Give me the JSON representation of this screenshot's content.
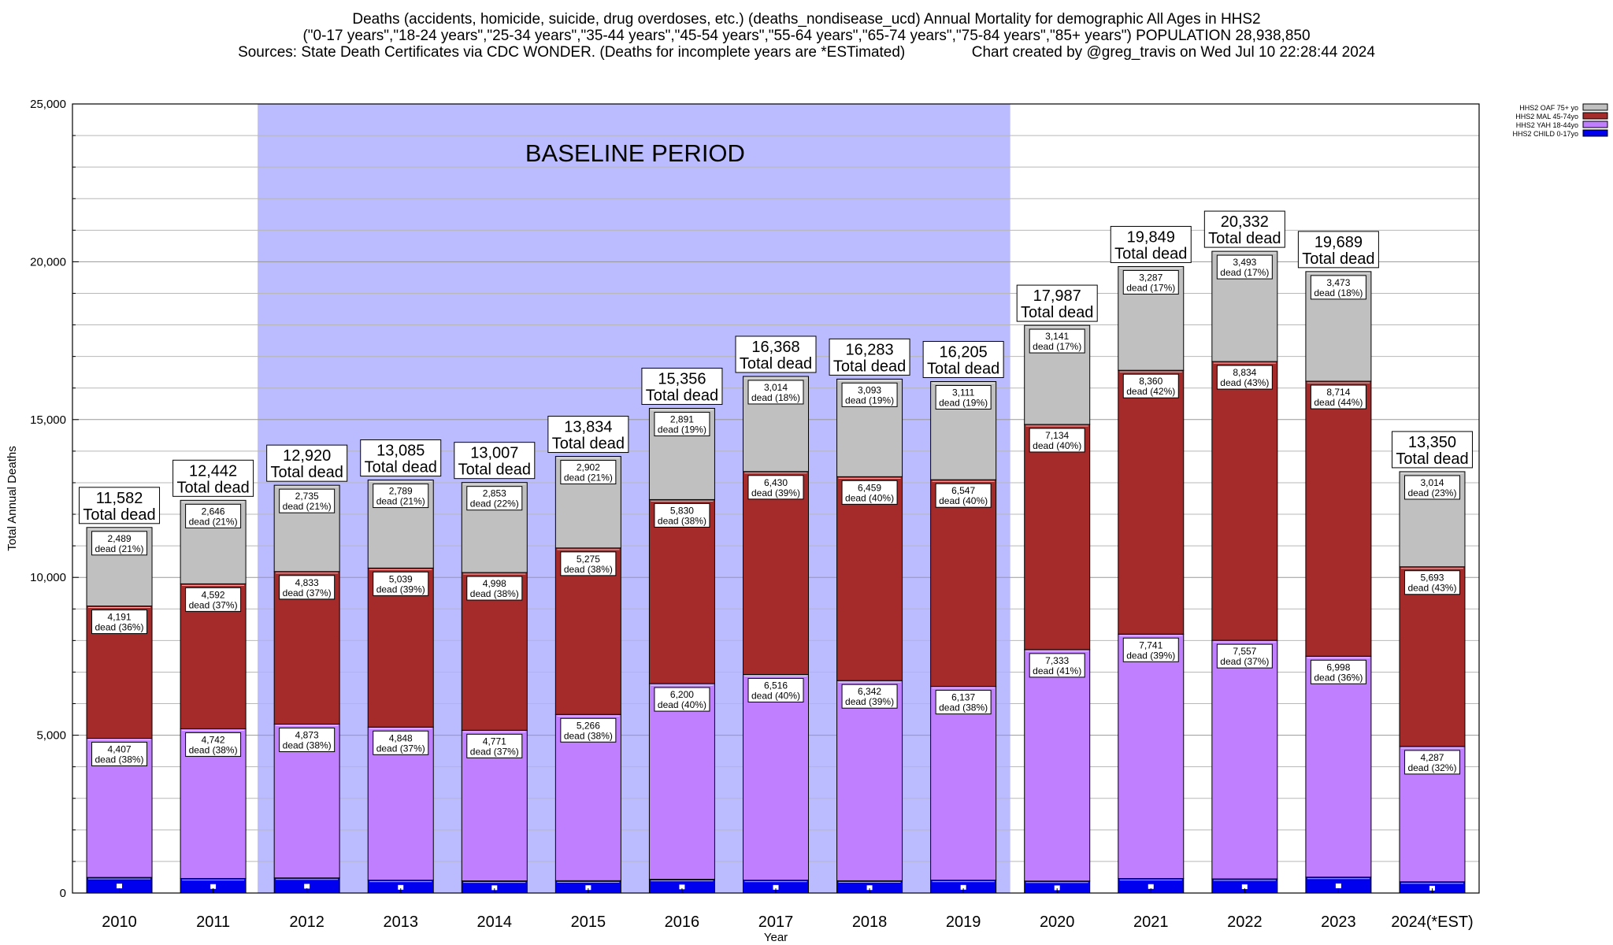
{
  "title": {
    "line1": "Deaths (accidents, homicide, suicide, drug overdoses, etc.) (deaths_nondisease_ucd) Annual Mortality for demographic All Ages in HHS2",
    "line2": "(\"0-17 years\",\"18-24 years\",\"25-34 years\",\"35-44 years\",\"45-54 years\",\"55-64 years\",\"65-74 years\",\"75-84 years\",\"85+ years\") POPULATION 28,938,850",
    "line3": "Sources: State Death Certificates via CDC WONDER. (Deaths for incomplete years are *ESTimated)                Chart created by @greg_travis on Wed Jul 10 22:28:44 2024"
  },
  "colors": {
    "child": "#0000ee",
    "yah": "#bf7fff",
    "mal": "#a52a2a",
    "oaf": "#c0c0c0",
    "baseline": "#bbbbff"
  },
  "chart_data": {
    "type": "bar",
    "stacked": true,
    "title": "Deaths (accidents, homicide, suicide, drug overdoses, etc.) (deaths_nondisease_ucd) Annual Mortality for demographic All Ages in HHS2",
    "xlabel": "Year",
    "ylabel": "Total Annual Deaths",
    "ylim": [
      0,
      25000
    ],
    "yticks": [
      0,
      5000,
      10000,
      15000,
      20000,
      25000
    ],
    "ytick_labels": [
      "0",
      "5,000",
      "10,000",
      "15,000",
      "20,000",
      "25,000"
    ],
    "categories": [
      "2010",
      "2011",
      "2012",
      "2013",
      "2014",
      "2015",
      "2016",
      "2017",
      "2018",
      "2019",
      "2020",
      "2021",
      "2022",
      "2023",
      "2024(*EST)"
    ],
    "baseline_period": {
      "label": "BASELINE PERIOD",
      "from": "2012",
      "to": "2019"
    },
    "total_suffix": "Total dead",
    "legend_position": "top-right",
    "series": [
      {
        "key": "child",
        "name": "HHS2 CHILD 0-17yo",
        "values": [
          495,
          462,
          479,
          409,
          385,
          391,
          435,
          408,
          389,
          410,
          379,
          461,
          448,
          504,
          356
        ]
      },
      {
        "key": "yah",
        "name": "HHS2 YAH 18-44yo",
        "values": [
          4407,
          4742,
          4873,
          4848,
          4771,
          5266,
          6200,
          6516,
          6342,
          6137,
          7333,
          7741,
          7557,
          6998,
          4287
        ],
        "labels": [
          "4,407\ndead (38%)",
          "4,742\ndead (38%)",
          "4,873\ndead (38%)",
          "4,848\ndead (37%)",
          "4,771\ndead (37%)",
          "5,266\ndead (38%)",
          "6,200\ndead (40%)",
          "6,516\ndead (40%)",
          "6,342\ndead (39%)",
          "6,137\ndead (38%)",
          "7,333\ndead (41%)",
          "7,741\ndead (39%)",
          "7,557\ndead (37%)",
          "6,998\ndead (36%)",
          "4,287\ndead (32%)"
        ]
      },
      {
        "key": "mal",
        "name": "HHS2 MAL 45-74yo",
        "values": [
          4191,
          4592,
          4833,
          5039,
          4998,
          5275,
          5830,
          6430,
          6459,
          6547,
          7134,
          8360,
          8834,
          8714,
          5693
        ],
        "labels": [
          "4,191\ndead (36%)",
          "4,592\ndead (37%)",
          "4,833\ndead (37%)",
          "5,039\ndead (39%)",
          "4,998\ndead (38%)",
          "5,275\ndead (38%)",
          "5,830\ndead (38%)",
          "6,430\ndead (39%)",
          "6,459\ndead (40%)",
          "6,547\ndead (40%)",
          "7,134\ndead (40%)",
          "8,360\ndead (42%)",
          "8,834\ndead (43%)",
          "8,714\ndead (44%)",
          "5,693\ndead (43%)"
        ]
      },
      {
        "key": "oaf",
        "name": "HHS2 OAF 75+ yo",
        "values": [
          2489,
          2646,
          2735,
          2789,
          2853,
          2902,
          2891,
          3014,
          3093,
          3111,
          3141,
          3287,
          3493,
          3473,
          3014
        ],
        "labels": [
          "2,489\ndead (21%)",
          "2,646\ndead (21%)",
          "2,735\ndead (21%)",
          "2,789\ndead (21%)",
          "2,853\ndead (22%)",
          "2,902\ndead (21%)",
          "2,891\ndead (19%)",
          "3,014\ndead (18%)",
          "3,093\ndead (19%)",
          "3,111\ndead (19%)",
          "3,141\ndead (17%)",
          "3,287\ndead (17%)",
          "3,493\ndead (17%)",
          "3,473\ndead (18%)",
          "3,014\ndead (23%)"
        ]
      }
    ],
    "totals": [
      11582,
      12442,
      12920,
      13085,
      13007,
      13834,
      15356,
      16368,
      16283,
      16205,
      17987,
      19849,
      20332,
      19689,
      13350
    ],
    "total_labels": [
      "11,582",
      "12,442",
      "12,920",
      "13,085",
      "13,007",
      "13,834",
      "15,356",
      "16,368",
      "16,283",
      "16,205",
      "17,987",
      "19,849",
      "20,332",
      "19,689",
      "13,350"
    ]
  }
}
